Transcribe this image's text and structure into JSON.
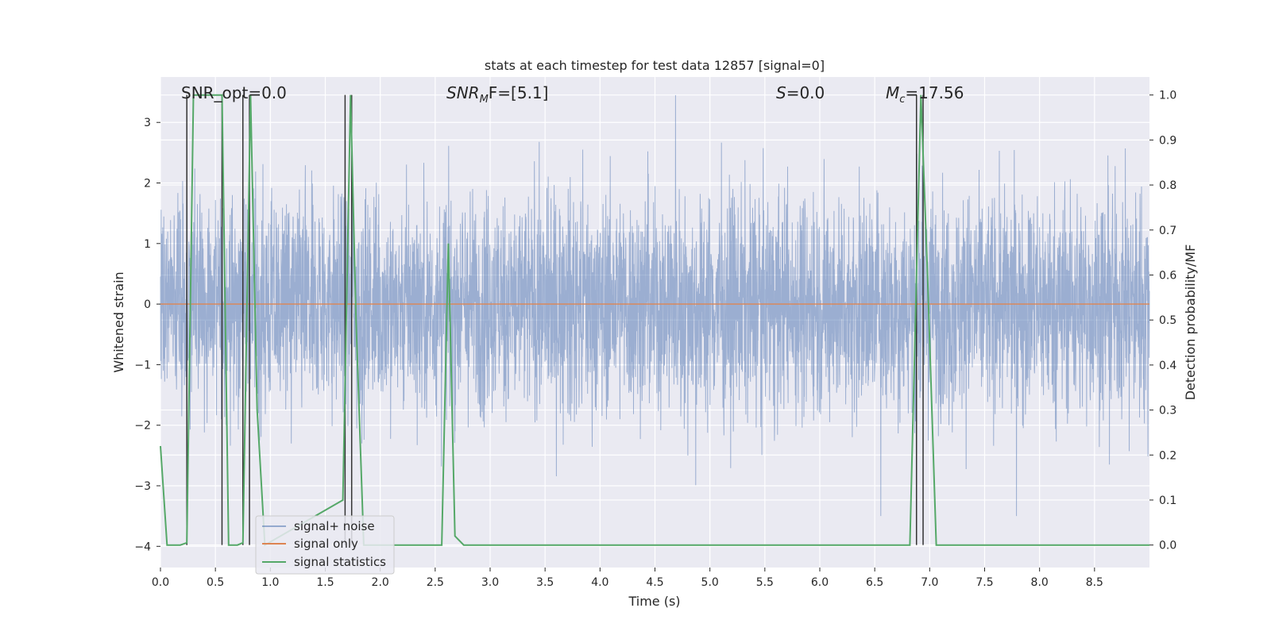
{
  "chart_data": {
    "type": "line",
    "title": "stats at each timestep for test data 12857 [signal=0]",
    "xlabel": "Time (s)",
    "ylabel_left": "Whitened strain",
    "ylabel_right": "Detection probability/MF",
    "xlim": [
      0,
      9.0
    ],
    "ylim_left": [
      -4.35,
      3.75
    ],
    "ylim_right": [
      -0.05,
      1.04
    ],
    "x_ticks": [
      "0.0",
      "0.5",
      "1.0",
      "1.5",
      "2.0",
      "2.5",
      "3.0",
      "3.5",
      "4.0",
      "4.5",
      "5.0",
      "5.5",
      "6.0",
      "6.5",
      "7.0",
      "7.5",
      "8.0",
      "8.5"
    ],
    "y_ticks_left": [
      "3",
      "2",
      "1",
      "0",
      "−1",
      "−2",
      "−3",
      "−4"
    ],
    "y_ticks_right": [
      "1.0",
      "0.9",
      "0.8",
      "0.7",
      "0.6",
      "0.5",
      "0.4",
      "0.3",
      "0.2",
      "0.1",
      "0.0"
    ],
    "grid": true,
    "legend_position": "lower-left",
    "annotations": {
      "snr_opt": "SNR_opt=0.0",
      "snr_mf_base": "SNR",
      "snr_mf_sub": "M",
      "snr_mf_rest": "F=[5.1]",
      "s_var": "S",
      "s_rest": "=0.0",
      "mc_var": "M",
      "mc_sub": "c",
      "mc_rest": "=17.56"
    },
    "series": [
      {
        "name": "signal+ noise",
        "color": "#4c72b0",
        "note_description": "whitened noise, roughly within -2.5..2.5 with spikes to about ±3.5",
        "amplitude_range": [
          -3.5,
          3.5
        ]
      },
      {
        "name": "signal only",
        "color": "#dd8452",
        "x": [
          0,
          9.0
        ],
        "y": [
          0,
          0
        ]
      },
      {
        "name": "signal statistics",
        "color": "#55a868",
        "axis": "right",
        "x": [
          0.0,
          0.06,
          0.18,
          0.24,
          0.3,
          0.56,
          0.62,
          0.7,
          0.75,
          0.82,
          0.88,
          0.95,
          1.66,
          1.73,
          1.78,
          1.85,
          2.56,
          2.62,
          2.68,
          2.76,
          3.3,
          5.2,
          6.82,
          6.92,
          6.98,
          7.06,
          7.5,
          9.0
        ],
        "y": [
          0.22,
          0.0,
          0.0,
          0.005,
          1.0,
          1.0,
          0.0,
          0.0,
          0.005,
          1.0,
          0.3,
          0.0,
          0.1,
          1.0,
          0.5,
          0.0,
          0.0,
          0.67,
          0.02,
          0.0,
          0.0,
          0.0,
          0.0,
          1.0,
          0.6,
          0.0,
          0.0,
          0.0
        ]
      }
    ],
    "vlines": [
      0.24,
      0.56,
      0.75,
      0.81,
      1.68,
      1.74,
      6.88,
      6.94
    ],
    "vline_color": "#333333"
  }
}
